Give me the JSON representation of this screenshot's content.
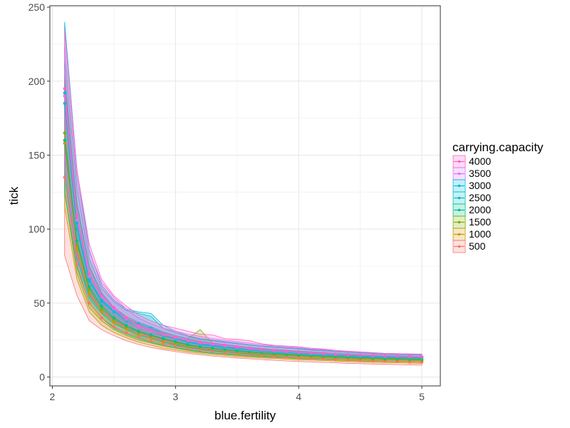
{
  "chart_data": {
    "type": "line",
    "xlabel": "blue.fertility",
    "ylabel": "tick",
    "xlim": [
      1.98,
      5.15
    ],
    "ylim": [
      -6,
      251
    ],
    "x_ticks": [
      2,
      3,
      4,
      5
    ],
    "y_ticks": [
      0,
      50,
      100,
      150,
      200,
      250
    ],
    "grid": true,
    "legend_title": "carrying.capacity",
    "legend_position": "right",
    "x": [
      2.1,
      2.2,
      2.3,
      2.4,
      2.5,
      2.6,
      2.7,
      2.8,
      2.9,
      3.0,
      3.1,
      3.2,
      3.3,
      3.4,
      3.5,
      3.6,
      3.7,
      3.8,
      3.9,
      4.0,
      4.1,
      4.2,
      4.3,
      4.4,
      4.5,
      4.6,
      4.7,
      4.8,
      4.9,
      5.0
    ],
    "series": [
      {
        "name": "4000",
        "color": "#FF61C3",
        "mean": [
          195,
          109,
          70,
          55,
          47,
          40,
          35,
          32,
          29,
          27,
          25,
          23.5,
          22.5,
          21.5,
          20.5,
          19.5,
          18.5,
          18,
          17.5,
          17,
          16.5,
          16,
          15.5,
          15.2,
          14.9,
          14.6,
          14.3,
          14.1,
          13.9,
          13.7
        ],
        "lower": [
          135,
          82,
          57,
          46,
          38,
          34,
          30,
          27,
          25,
          23,
          21.5,
          20,
          19,
          18.5,
          17.5,
          17,
          16.5,
          16,
          15.5,
          15,
          14.5,
          14,
          13.5,
          13.2,
          12.9,
          12.6,
          12.3,
          12.1,
          11.9,
          11.7
        ],
        "upper": [
          235,
          140,
          90,
          66,
          55,
          48,
          42,
          38,
          35,
          33,
          31,
          29,
          28.5,
          26,
          25.5,
          24.5,
          22.5,
          21.5,
          21,
          20.5,
          19.5,
          19,
          18,
          17.5,
          17,
          16.5,
          16,
          15.8,
          15.6,
          15.5
        ]
      },
      {
        "name": "3500",
        "color": "#DB72FB",
        "mean": [
          190,
          106,
          68,
          54,
          46,
          39,
          34,
          31,
          28.5,
          26.5,
          24.5,
          23,
          22,
          21,
          20,
          19,
          18.2,
          17.6,
          17.1,
          16.6,
          16.1,
          15.7,
          15.3,
          15,
          14.7,
          14.4,
          14.1,
          13.9,
          13.7,
          13.5
        ],
        "lower": [
          150,
          84,
          56,
          45,
          38,
          33,
          29,
          27,
          24.5,
          22.5,
          21,
          19.5,
          18.5,
          18,
          17,
          16.5,
          16,
          15.5,
          15,
          14.5,
          14,
          13.7,
          13.3,
          13,
          12.7,
          12.4,
          12.1,
          11.9,
          11.7,
          11.5
        ],
        "upper": [
          225,
          135,
          85,
          64,
          54,
          46,
          40,
          36,
          33,
          31,
          29,
          27.5,
          26,
          25,
          24,
          23,
          22,
          21,
          20.5,
          20,
          19,
          18.5,
          17.8,
          17.3,
          16.8,
          16.4,
          16,
          15.8,
          15.6,
          15.4
        ]
      },
      {
        "name": "3000",
        "color": "#00B9E3",
        "mean": [
          192,
          104,
          66,
          52,
          45,
          39,
          36,
          33,
          29,
          26.5,
          24,
          22.5,
          21.5,
          20.5,
          19.5,
          18.7,
          18,
          17.4,
          16.9,
          16.4,
          15.9,
          15.5,
          15.1,
          14.8,
          14.5,
          14.2,
          13.9,
          13.7,
          13.5,
          13.3
        ],
        "lower": [
          150,
          82,
          55,
          44,
          37,
          33,
          30,
          27,
          24,
          22,
          20.5,
          19,
          18,
          17.5,
          16.7,
          16,
          15.5,
          15,
          14.6,
          14.2,
          13.8,
          13.4,
          13,
          12.7,
          12.4,
          12.1,
          11.9,
          11.7,
          11.5,
          11.3
        ],
        "upper": [
          240,
          140,
          86,
          62,
          52,
          46,
          44,
          43,
          35,
          31,
          28,
          26,
          25,
          24,
          23,
          22,
          21.2,
          20.5,
          20,
          19.5,
          18.7,
          18.2,
          17.6,
          17.1,
          16.6,
          16.2,
          15.8,
          15.6,
          15.4,
          15.2
        ]
      },
      {
        "name": "2500",
        "color": "#00BFC4",
        "mean": [
          185,
          100,
          65,
          51,
          44,
          38,
          34,
          31,
          28,
          26,
          23.5,
          22,
          21,
          20,
          19,
          18.3,
          17.6,
          17,
          16.5,
          16,
          15.5,
          15.1,
          14.7,
          14.4,
          14.1,
          13.8,
          13.5,
          13.3,
          13.1,
          12.9
        ],
        "lower": [
          140,
          80,
          53,
          43,
          36,
          32,
          28,
          26,
          23.5,
          21.5,
          20,
          18.5,
          17.5,
          17,
          16.2,
          15.6,
          15,
          14.6,
          14.2,
          13.8,
          13.4,
          13,
          12.6,
          12.3,
          12,
          11.8,
          11.6,
          11.4,
          11.2,
          11
        ],
        "upper": [
          215,
          128,
          80,
          60,
          51,
          45,
          43,
          41,
          33,
          30,
          27.5,
          25.5,
          24.5,
          23.5,
          22.5,
          21.5,
          20.7,
          20,
          19.5,
          19,
          18.2,
          17.7,
          17.1,
          16.6,
          16.2,
          15.8,
          15.4,
          15.2,
          15,
          14.8
        ]
      },
      {
        "name": "2000",
        "color": "#00C08B",
        "mean": [
          160,
          92,
          61,
          48,
          40,
          35,
          31,
          28.5,
          26,
          24,
          22,
          20.5,
          19.5,
          18.6,
          17.8,
          17.1,
          16.5,
          16,
          15.5,
          15,
          14.6,
          14.2,
          13.8,
          13.5,
          13.2,
          12.9,
          12.6,
          12.4,
          12.2,
          12
        ],
        "lower": [
          125,
          74,
          50,
          40,
          33,
          29,
          26,
          23.5,
          21.5,
          20,
          18.5,
          17.2,
          16.3,
          15.6,
          15,
          14.4,
          13.9,
          13.5,
          13.1,
          12.7,
          12.4,
          12.1,
          11.8,
          11.5,
          11.2,
          11,
          10.8,
          10.6,
          10.4,
          10.2
        ],
        "upper": [
          200,
          118,
          75,
          57,
          47,
          41,
          37,
          34,
          30.5,
          28,
          26,
          24,
          23,
          22,
          21,
          20,
          19.3,
          18.6,
          18,
          17.5,
          17,
          16.5,
          16,
          15.6,
          15.2,
          14.9,
          14.6,
          14.4,
          14.2,
          14
        ]
      },
      {
        "name": "1500",
        "color": "#7CAE00",
        "mean": [
          165,
          90,
          59,
          46,
          39,
          34,
          30.5,
          28,
          25.5,
          23.5,
          21.5,
          20.5,
          19.5,
          18.5,
          17.5,
          16.8,
          16.2,
          15.7,
          15.2,
          14.7,
          14.3,
          13.9,
          13.5,
          13.2,
          12.9,
          12.6,
          12.3,
          12.1,
          11.9,
          11.7
        ],
        "lower": [
          125,
          70,
          47,
          38,
          32,
          28,
          25,
          23,
          21,
          19.5,
          18,
          16.8,
          16,
          15.3,
          14.7,
          14.1,
          13.6,
          13.2,
          12.8,
          12.4,
          12.1,
          11.8,
          11.5,
          11.2,
          10.9,
          10.7,
          10.5,
          10.3,
          10.1,
          9.9
        ],
        "upper": [
          205,
          115,
          74,
          56,
          46,
          40,
          36,
          33,
          30,
          28,
          26,
          32,
          23,
          21.5,
          20.5,
          19.7,
          19,
          18.3,
          17.7,
          17.2,
          16.7,
          16.2,
          15.7,
          15.3,
          14.9,
          14.6,
          14.3,
          14.1,
          13.9,
          13.7
        ]
      },
      {
        "name": "1000",
        "color": "#CD9600",
        "mean": [
          158,
          86,
          56,
          44,
          37,
          32.5,
          29,
          26.5,
          24,
          22.5,
          20.8,
          19.5,
          18.5,
          17.6,
          16.8,
          16.1,
          15.5,
          15,
          14.5,
          14.1,
          13.7,
          13.3,
          12.9,
          12.6,
          12.3,
          12,
          11.7,
          11.5,
          11.3,
          11.1
        ],
        "lower": [
          115,
          66,
          44,
          35,
          30,
          26.5,
          23.5,
          21.5,
          19.5,
          18.3,
          17,
          16,
          15.2,
          14.5,
          13.9,
          13.4,
          12.9,
          12.5,
          12.1,
          11.7,
          11.4,
          11.1,
          10.8,
          10.5,
          10.2,
          10,
          9.8,
          9.6,
          9.4,
          9.2
        ],
        "upper": [
          198,
          108,
          70,
          53,
          44,
          38.5,
          34.5,
          31.5,
          28.5,
          26.5,
          24.5,
          23,
          21.8,
          20.7,
          19.7,
          18.8,
          18.1,
          17.5,
          16.9,
          16.4,
          15.9,
          15.5,
          15,
          14.6,
          14.2,
          13.9,
          13.6,
          13.4,
          13.2,
          13
        ]
      },
      {
        "name": "500",
        "color": "#F8766D",
        "mean": [
          135,
          76,
          50,
          40,
          34,
          30,
          27,
          24.5,
          22.5,
          21,
          19.5,
          18.3,
          17.3,
          16.5,
          15.8,
          15.1,
          14.5,
          14,
          13.5,
          13.1,
          12.7,
          12.3,
          11.9,
          11.6,
          11.3,
          11,
          10.7,
          10.5,
          10.3,
          10.1
        ],
        "lower": [
          82,
          55,
          38,
          32,
          28,
          24.5,
          22,
          20,
          18.5,
          17.2,
          16,
          15,
          14.2,
          13.5,
          12.9,
          12.3,
          11.8,
          11.3,
          10.9,
          10.5,
          10.2,
          9.9,
          9.6,
          9.3,
          9,
          8.8,
          8.6,
          8.4,
          8.2,
          8
        ],
        "upper": [
          195,
          105,
          66,
          50,
          42,
          37,
          33,
          30,
          27.5,
          25.5,
          23.5,
          22,
          21,
          20,
          19.1,
          18.3,
          17.6,
          17,
          16.4,
          15.9,
          15.4,
          15,
          14.5,
          14.1,
          13.7,
          13.4,
          13.1,
          12.9,
          12.7,
          12.5
        ]
      }
    ]
  }
}
